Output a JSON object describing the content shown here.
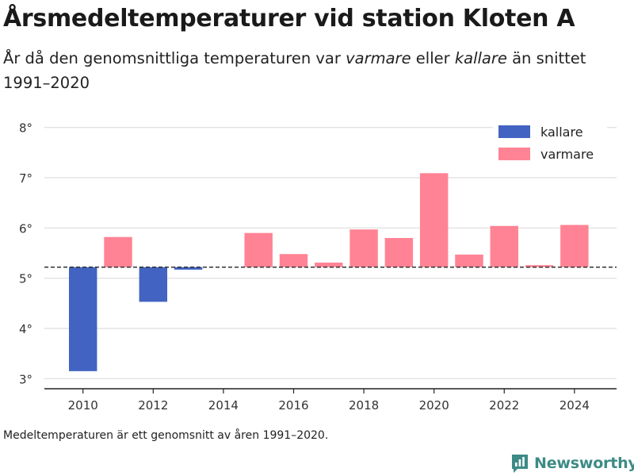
{
  "title": "Årsmedeltemperaturer vid station Kloten A",
  "subtitle": {
    "part1": "År då den genomsnittliga temperaturen var ",
    "warmer_word": "varmare",
    "part2": " eller ",
    "colder_word": "kallare",
    "part3": " än snittet 1991–2020"
  },
  "footnote": "Medeltemperaturen är ett genomsnitt av åren 1991–2020.",
  "brand": "Newsworthy",
  "colors": {
    "colder": "#4263c1",
    "warmer": "#ff8394",
    "grid": "#dddddd",
    "brand": "#3d8a86"
  },
  "chart_data": {
    "type": "bar",
    "baseline": 5.22,
    "ylim": [
      2.8,
      8.2
    ],
    "yticks": [
      3,
      4,
      5,
      6,
      7,
      8
    ],
    "ytick_labels": [
      "3°",
      "4°",
      "5°",
      "6°",
      "7°",
      "8°"
    ],
    "xlim": [
      2008.9,
      2025.2
    ],
    "xticks": [
      2010,
      2012,
      2014,
      2016,
      2018,
      2020,
      2022,
      2024
    ],
    "xtick_labels": [
      "2010",
      "2012",
      "2014",
      "2016",
      "2018",
      "2020",
      "2022",
      "2024"
    ],
    "legend": {
      "position": "top-right",
      "items": [
        "kallare",
        "varmare"
      ]
    },
    "years": [
      2010,
      2011,
      2012,
      2013,
      2015,
      2016,
      2017,
      2018,
      2019,
      2020,
      2021,
      2022,
      2023,
      2024
    ],
    "values": [
      3.15,
      5.82,
      4.53,
      5.17,
      5.9,
      5.48,
      5.31,
      5.97,
      5.8,
      7.09,
      5.47,
      6.04,
      5.26,
      6.06
    ],
    "categories": [
      "kallare",
      "varmare",
      "kallare",
      "kallare",
      "varmare",
      "varmare",
      "varmare",
      "varmare",
      "varmare",
      "varmare",
      "varmare",
      "varmare",
      "varmare",
      "varmare"
    ]
  }
}
